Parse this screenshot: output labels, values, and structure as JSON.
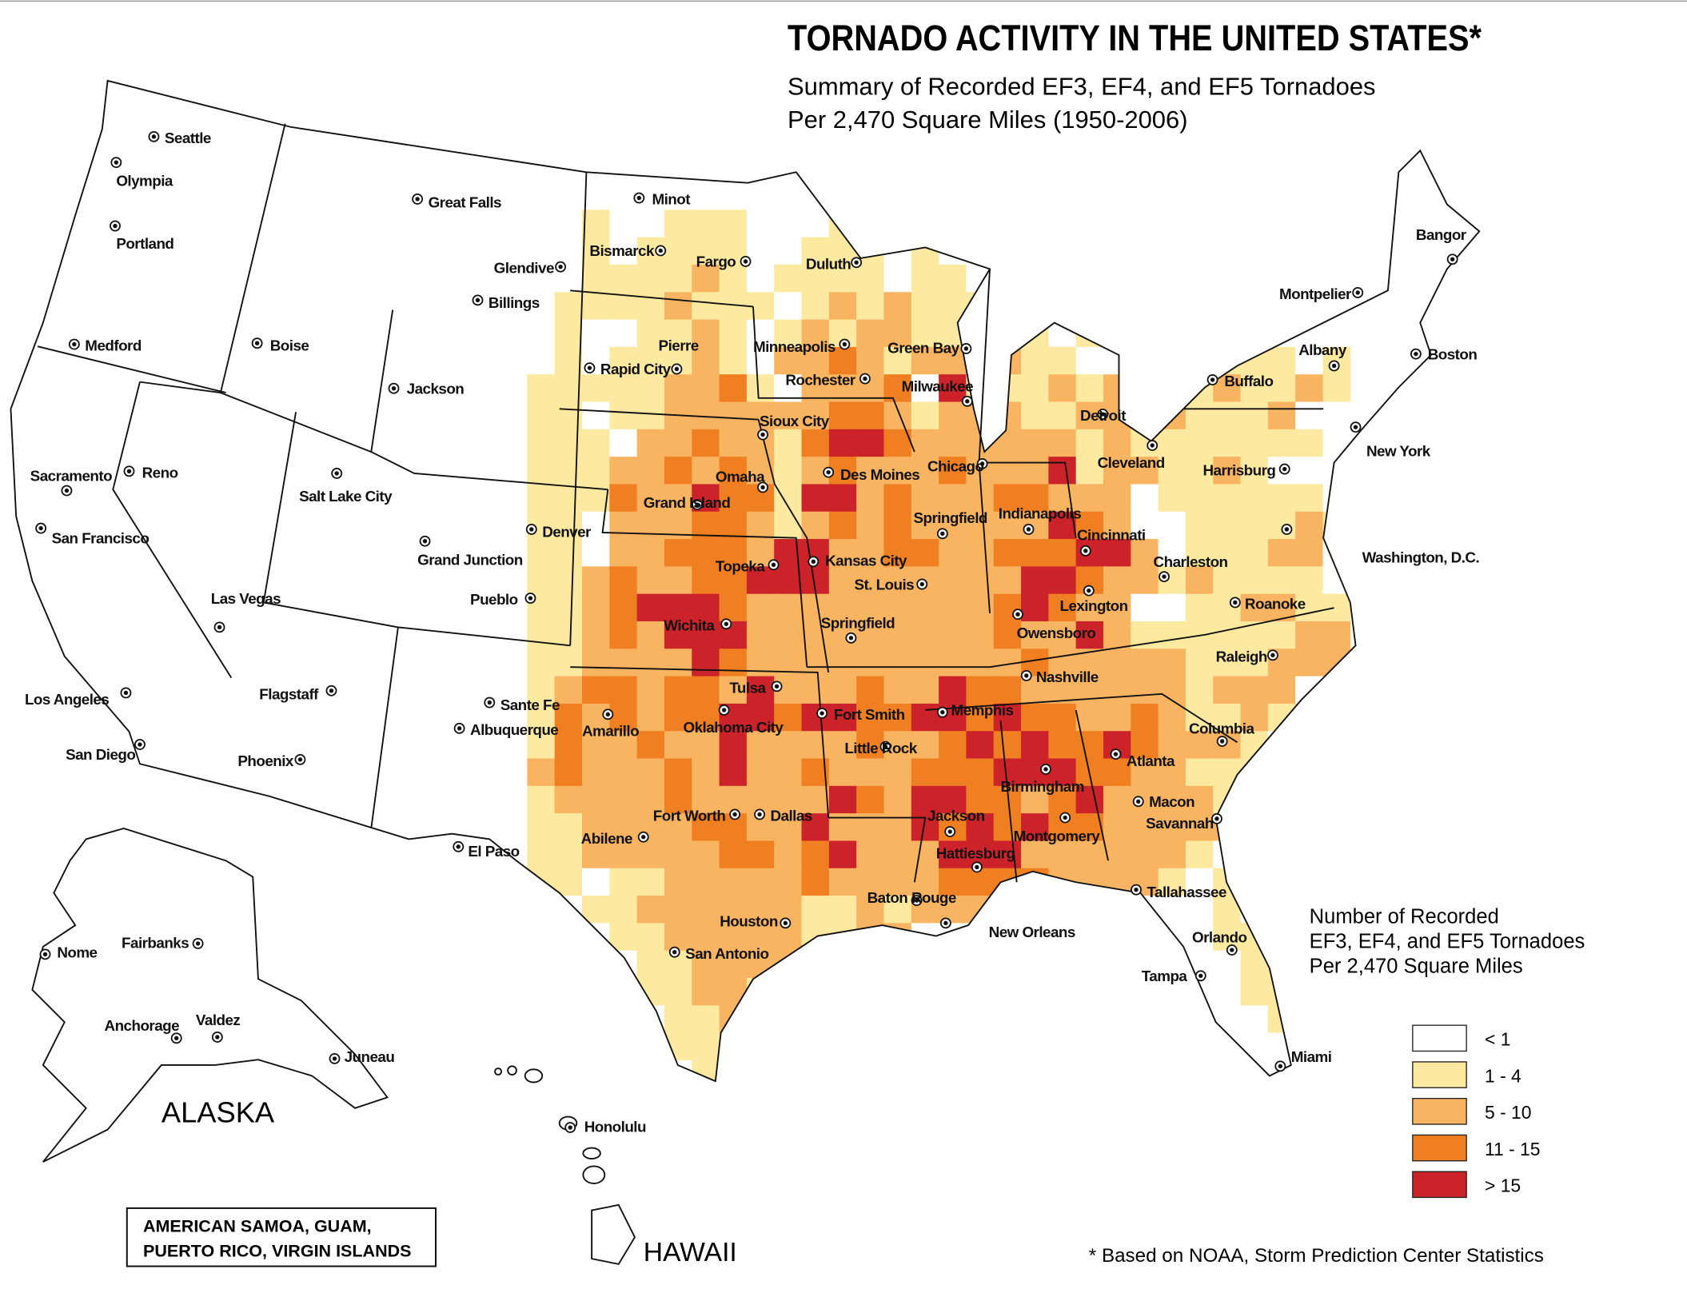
{
  "header": {
    "title": "TORNADO ACTIVITY IN THE UNITED STATES*",
    "subtitle_lines": [
      "Summary  of Recorded EF3, EF4, and EF5 Tornadoes",
      "Per 2,470 Square Miles (1950-2006)"
    ]
  },
  "cities": [
    "Seattle",
    "Olympia",
    "Portland",
    "Medford",
    "Boise",
    "Sacramento",
    "Reno",
    "San Francisco",
    "Las Vegas",
    "Los Angeles",
    "San Diego",
    "Salt Lake City",
    "Great Falls",
    "Glendive",
    "Billings",
    "Jackson",
    "Grand Junction",
    "Denver",
    "Pueblo",
    "Flagstaff",
    "Phoenix",
    "Sante Fe",
    "Albuquerque",
    "El Paso",
    "Minot",
    "Bismarck",
    "Fargo",
    "Pierre",
    "Rapid City",
    "Duluth",
    "Minneapolis",
    "Rochester",
    "Green Bay",
    "Milwaukee",
    "Sioux City",
    "Omaha",
    "Grand Island",
    "Des Moines",
    "Chicago",
    "Springfield",
    "Indianapolis",
    "Cincinnati",
    "Topeka",
    "Kansas City",
    "St. Louis",
    "Wichita",
    "Springfield",
    "Owensboro",
    "Lexington",
    "Nashville",
    "Tulsa",
    "Fort Smith",
    "Memphis",
    "Oklahoma City",
    "Amarillo",
    "Little Rock",
    "Birmingham",
    "Atlanta",
    "Fort Worth",
    "Dallas",
    "Abilene",
    "Jackson",
    "Hattiesburg",
    "Montgomery",
    "Macon",
    "Savannah",
    "Tallahassee",
    "Baton Rouge",
    "New Orleans",
    "Houston",
    "San Antonio",
    "Orlando",
    "Tampa",
    "Miami",
    "Detroit",
    "Cleveland",
    "Buffalo",
    "Albany",
    "Boston",
    "Montpelier",
    "Bangor",
    "New York",
    "Harrisburg",
    "Washington, D.C.",
    "Charleston",
    "Roanoke",
    "Raleigh",
    "Columbia",
    "Honolulu",
    "Nome",
    "Fairbanks",
    "Anchorage",
    "Valdez",
    "Juneau"
  ],
  "regions": {
    "alaska": "ALASKA",
    "hawaii": "HAWAII",
    "territories": [
      "AMERICAN SAMOA, GUAM,",
      "PUERTO RICO, VIRGIN ISLANDS"
    ]
  },
  "legend": {
    "title_lines": [
      "Number of Recorded",
      "EF3, EF4, and EF5 Tornadoes",
      "Per 2,470 Square Miles"
    ],
    "items": [
      {
        "label": "< 1",
        "color": "#ffffff"
      },
      {
        "label": "1 - 4",
        "color": "#fde9a0"
      },
      {
        "label": "5 - 10",
        "color": "#f9b462"
      },
      {
        "label": "11 - 15",
        "color": "#f07f22"
      },
      {
        "label": "> 15",
        "color": "#cc2229"
      }
    ]
  },
  "grid": {
    "rows": [
      [
        0,
        0,
        1,
        0,
        0,
        1,
        1,
        1,
        0,
        0,
        0,
        1,
        1,
        0,
        0,
        0,
        0,
        0,
        0,
        0,
        0,
        0,
        0,
        0,
        0,
        0,
        0,
        0,
        0,
        0
      ],
      [
        0,
        0,
        1,
        0,
        1,
        1,
        1,
        1,
        0,
        0,
        1,
        1,
        1,
        0,
        1,
        0,
        0,
        0,
        0,
        0,
        0,
        0,
        0,
        0,
        0,
        0,
        0,
        0,
        0,
        0
      ],
      [
        0,
        0,
        1,
        1,
        1,
        1,
        2,
        1,
        0,
        1,
        1,
        1,
        1,
        0,
        1,
        1,
        0,
        1,
        0,
        0,
        0,
        0,
        1,
        0,
        0,
        0,
        0,
        0,
        0,
        0
      ],
      [
        0,
        1,
        1,
        1,
        1,
        2,
        1,
        1,
        1,
        0,
        1,
        2,
        1,
        2,
        1,
        1,
        1,
        2,
        1,
        0,
        0,
        0,
        0,
        0,
        1,
        0,
        0,
        0,
        0,
        0
      ],
      [
        0,
        1,
        0,
        0,
        1,
        1,
        2,
        1,
        0,
        1,
        2,
        1,
        2,
        2,
        1,
        1,
        1,
        2,
        1,
        0,
        1,
        0,
        0,
        0,
        0,
        0,
        0,
        0,
        0,
        0
      ],
      [
        0,
        1,
        0,
        1,
        1,
        1,
        2,
        1,
        0,
        2,
        2,
        3,
        2,
        1,
        2,
        2,
        1,
        2,
        1,
        1,
        0,
        0,
        0,
        0,
        1,
        1,
        1,
        1,
        0,
        1
      ],
      [
        1,
        1,
        1,
        1,
        1,
        2,
        2,
        3,
        1,
        0,
        2,
        2,
        2,
        3,
        0,
        4,
        1,
        1,
        1,
        2,
        1,
        2,
        0,
        1,
        1,
        2,
        1,
        1,
        2,
        1
      ],
      [
        1,
        1,
        0,
        1,
        1,
        2,
        2,
        2,
        2,
        2,
        2,
        3,
        3,
        2,
        1,
        2,
        2,
        2,
        1,
        1,
        2,
        2,
        1,
        2,
        1,
        1,
        1,
        2,
        0,
        0
      ],
      [
        1,
        1,
        1,
        0,
        2,
        2,
        3,
        2,
        2,
        1,
        3,
        4,
        4,
        3,
        2,
        2,
        2,
        2,
        2,
        2,
        1,
        2,
        1,
        1,
        1,
        1,
        1,
        1,
        1,
        0
      ],
      [
        1,
        1,
        1,
        2,
        2,
        3,
        2,
        3,
        2,
        1,
        2,
        3,
        2,
        2,
        2,
        3,
        2,
        2,
        2,
        4,
        1,
        2,
        2,
        1,
        1,
        2,
        1,
        0,
        0,
        0
      ],
      [
        1,
        1,
        1,
        3,
        2,
        2,
        4,
        3,
        3,
        1,
        4,
        4,
        2,
        3,
        2,
        2,
        2,
        3,
        3,
        2,
        2,
        2,
        0,
        1,
        1,
        1,
        1,
        1,
        1,
        0
      ],
      [
        1,
        1,
        0,
        2,
        2,
        2,
        3,
        3,
        2,
        1,
        2,
        3,
        2,
        3,
        2,
        2,
        2,
        2,
        2,
        4,
        3,
        2,
        0,
        0,
        1,
        1,
        1,
        1,
        2,
        1
      ],
      [
        1,
        1,
        0,
        2,
        2,
        3,
        3,
        3,
        2,
        4,
        4,
        2,
        2,
        3,
        3,
        2,
        2,
        3,
        3,
        3,
        4,
        4,
        2,
        0,
        1,
        1,
        1,
        2,
        2,
        0
      ],
      [
        1,
        1,
        2,
        3,
        2,
        2,
        3,
        3,
        4,
        4,
        4,
        2,
        2,
        2,
        2,
        2,
        2,
        2,
        4,
        4,
        3,
        2,
        2,
        1,
        2,
        1,
        1,
        1,
        1,
        0
      ],
      [
        1,
        1,
        2,
        3,
        4,
        4,
        4,
        3,
        2,
        2,
        2,
        2,
        2,
        2,
        2,
        2,
        2,
        3,
        4,
        3,
        2,
        2,
        0,
        0,
        1,
        1,
        2,
        2,
        1,
        1
      ],
      [
        1,
        1,
        2,
        3,
        2,
        4,
        4,
        4,
        2,
        2,
        2,
        2,
        2,
        2,
        2,
        2,
        2,
        3,
        2,
        2,
        4,
        2,
        1,
        1,
        1,
        1,
        1,
        1,
        2,
        2
      ],
      [
        1,
        1,
        2,
        2,
        2,
        2,
        4,
        3,
        2,
        2,
        2,
        2,
        2,
        2,
        2,
        2,
        2,
        2,
        3,
        2,
        2,
        2,
        2,
        2,
        1,
        1,
        1,
        2,
        2,
        2
      ],
      [
        1,
        2,
        3,
        3,
        2,
        3,
        3,
        2,
        4,
        2,
        2,
        2,
        3,
        2,
        2,
        4,
        3,
        3,
        2,
        2,
        2,
        2,
        2,
        2,
        1,
        2,
        2,
        2,
        0,
        0
      ],
      [
        1,
        3,
        2,
        3,
        2,
        3,
        3,
        4,
        4,
        3,
        4,
        4,
        3,
        3,
        4,
        4,
        3,
        4,
        3,
        3,
        2,
        2,
        3,
        2,
        1,
        1,
        2,
        1,
        2,
        0
      ],
      [
        1,
        3,
        2,
        2,
        3,
        2,
        2,
        4,
        2,
        2,
        2,
        2,
        3,
        2,
        2,
        3,
        4,
        3,
        4,
        3,
        3,
        4,
        3,
        2,
        2,
        2,
        1,
        0,
        0,
        0
      ],
      [
        2,
        3,
        2,
        2,
        2,
        3,
        2,
        4,
        2,
        2,
        3,
        2,
        2,
        2,
        3,
        3,
        3,
        4,
        4,
        4,
        3,
        3,
        2,
        2,
        1,
        1,
        1,
        0,
        0,
        0
      ],
      [
        1,
        2,
        2,
        2,
        2,
        3,
        2,
        2,
        2,
        2,
        2,
        4,
        3,
        2,
        4,
        4,
        3,
        3,
        2,
        3,
        4,
        2,
        2,
        2,
        2,
        1,
        0,
        0,
        0,
        0
      ],
      [
        1,
        1,
        2,
        2,
        2,
        2,
        3,
        3,
        2,
        2,
        4,
        2,
        2,
        2,
        4,
        3,
        4,
        3,
        4,
        3,
        3,
        2,
        2,
        2,
        2,
        2,
        1,
        1,
        0,
        0
      ],
      [
        1,
        1,
        2,
        2,
        2,
        2,
        2,
        3,
        3,
        2,
        3,
        4,
        2,
        2,
        2,
        4,
        4,
        4,
        2,
        2,
        2,
        2,
        2,
        2,
        1,
        0,
        0,
        0,
        0,
        0
      ],
      [
        1,
        1,
        0,
        1,
        1,
        2,
        2,
        2,
        2,
        2,
        3,
        2,
        2,
        2,
        2,
        3,
        3,
        3,
        3,
        2,
        2,
        2,
        2,
        1,
        0,
        1,
        0,
        0,
        0,
        0
      ],
      [
        0,
        0,
        1,
        1,
        2,
        2,
        2,
        2,
        2,
        2,
        1,
        1,
        2,
        1,
        2,
        2,
        2,
        0,
        1,
        1,
        1,
        0,
        0,
        0,
        0,
        1,
        0,
        0,
        0,
        0
      ],
      [
        0,
        0,
        0,
        1,
        1,
        2,
        2,
        2,
        2,
        2,
        1,
        1,
        2,
        2,
        0,
        0,
        0,
        0,
        0,
        0,
        0,
        0,
        0,
        0,
        0,
        1,
        1,
        0,
        0,
        0
      ],
      [
        0,
        0,
        0,
        0,
        1,
        1,
        2,
        2,
        2,
        2,
        1,
        1,
        0,
        0,
        0,
        0,
        0,
        0,
        0,
        0,
        0,
        0,
        0,
        0,
        0,
        0,
        1,
        1,
        1,
        0
      ],
      [
        0,
        0,
        0,
        0,
        1,
        1,
        2,
        2,
        1,
        0,
        0,
        0,
        0,
        0,
        0,
        0,
        0,
        0,
        0,
        0,
        0,
        0,
        0,
        0,
        0,
        0,
        1,
        1,
        1,
        1
      ],
      [
        0,
        0,
        0,
        0,
        0,
        1,
        1,
        2,
        1,
        0,
        0,
        0,
        0,
        0,
        0,
        0,
        0,
        0,
        0,
        0,
        0,
        0,
        0,
        0,
        0,
        0,
        0,
        1,
        1,
        1
      ],
      [
        0,
        0,
        0,
        0,
        0,
        1,
        1,
        1,
        0,
        0,
        0,
        0,
        0,
        0,
        0,
        0,
        0,
        0,
        0,
        0,
        0,
        0,
        0,
        0,
        0,
        0,
        0,
        0,
        1,
        0
      ],
      [
        0,
        0,
        0,
        0,
        0,
        0,
        1,
        1,
        0,
        0,
        0,
        0,
        0,
        0,
        0,
        0,
        0,
        0,
        0,
        0,
        0,
        0,
        0,
        0,
        0,
        0,
        0,
        0,
        0,
        0
      ]
    ]
  },
  "footnote": "* Based on NOAA, Storm Prediction Center Statistics"
}
